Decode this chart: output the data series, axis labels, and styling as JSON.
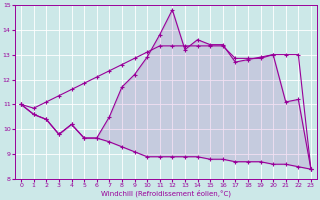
{
  "xlabel": "Windchill (Refroidissement éolien,°C)",
  "background_color": "#cce8e8",
  "line_color": "#990099",
  "xlim": [
    -0.5,
    23.5
  ],
  "ylim": [
    8,
    15
  ],
  "yticks": [
    8,
    9,
    10,
    11,
    12,
    13,
    14,
    15
  ],
  "xticks": [
    0,
    1,
    2,
    3,
    4,
    5,
    6,
    7,
    8,
    9,
    10,
    11,
    12,
    13,
    14,
    15,
    16,
    17,
    18,
    19,
    20,
    21,
    22,
    23
  ],
  "x_data": [
    0,
    1,
    2,
    3,
    4,
    5,
    6,
    7,
    8,
    9,
    10,
    11,
    12,
    13,
    14,
    15,
    16,
    17,
    18,
    19,
    20,
    21,
    22,
    23
  ],
  "y_upper": [
    11.0,
    10.6,
    10.4,
    9.8,
    10.2,
    9.65,
    9.65,
    10.5,
    11.7,
    12.2,
    12.9,
    13.8,
    14.8,
    13.2,
    13.6,
    13.4,
    13.4,
    12.7,
    12.8,
    12.9,
    13.0,
    11.1,
    11.2,
    8.4
  ],
  "y_middle": [
    11.0,
    10.85,
    11.1,
    11.35,
    11.6,
    11.85,
    12.1,
    12.35,
    12.6,
    12.85,
    13.1,
    13.35,
    13.35,
    13.35,
    13.35,
    13.35,
    13.35,
    12.85,
    12.85,
    12.85,
    13.0,
    13.0,
    13.0,
    8.4
  ],
  "y_lower": [
    11.0,
    10.6,
    10.4,
    9.8,
    10.2,
    9.65,
    9.65,
    9.5,
    9.3,
    9.1,
    8.9,
    8.9,
    8.9,
    8.9,
    8.9,
    8.8,
    8.8,
    8.7,
    8.7,
    8.7,
    8.6,
    8.6,
    8.5,
    8.4
  ]
}
